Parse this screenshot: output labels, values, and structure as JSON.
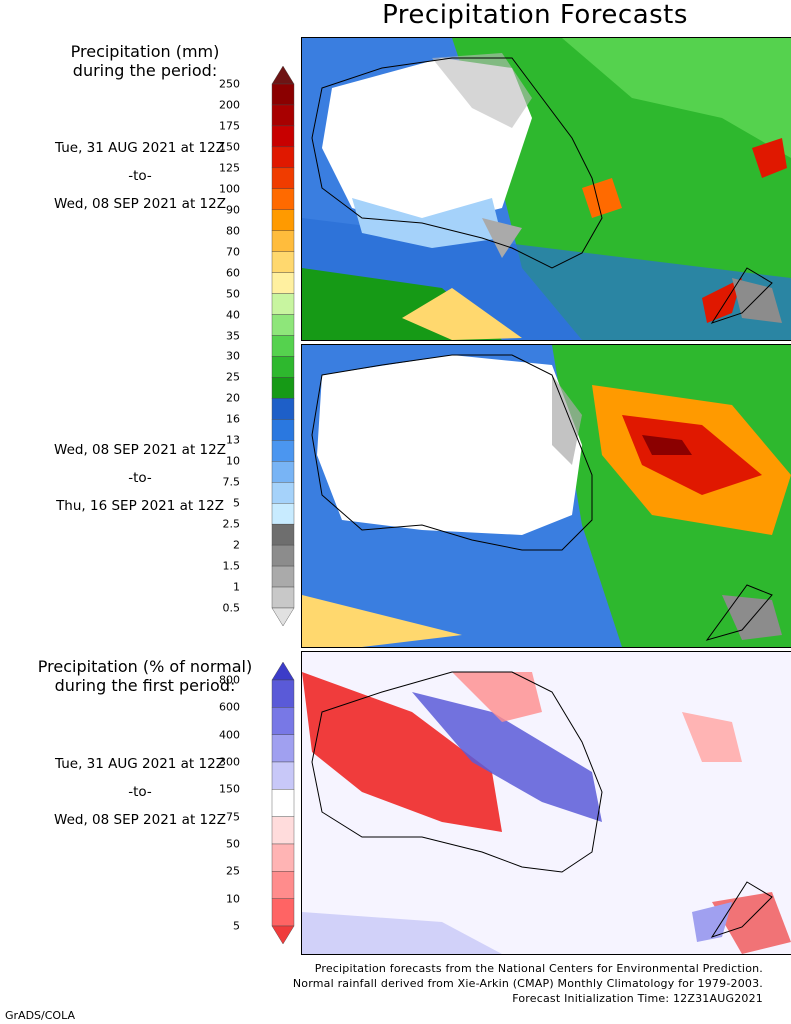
{
  "title": "Precipitation Forecasts",
  "panel1": {
    "heading_line1": "Precipitation (mm)",
    "heading_line2": "during the period:",
    "start": "Tue, 31 AUG 2021 at 12Z",
    "sep": "-to-",
    "end": "Wed, 08 SEP 2021 at 12Z"
  },
  "panel2": {
    "start": "Wed, 08 SEP 2021 at 12Z",
    "sep": "-to-",
    "end": "Thu, 16 SEP 2021 at 12Z"
  },
  "panel3": {
    "heading_line1": "Precipitation (% of normal)",
    "heading_line2": "during the first period:",
    "start": "Tue, 31 AUG 2021 at 12Z",
    "sep": "-to-",
    "end": "Wed, 08 SEP 2021 at 12Z"
  },
  "mm_scale": {
    "ticks": [
      "250",
      "200",
      "175",
      "150",
      "125",
      "100",
      "90",
      "80",
      "70",
      "60",
      "50",
      "40",
      "35",
      "30",
      "25",
      "20",
      "16",
      "13",
      "10",
      "7.5",
      "5",
      "2.5",
      "2",
      "1.5",
      "1",
      "0.5"
    ],
    "colors": [
      "#6e1414",
      "#8b0000",
      "#a80000",
      "#c80000",
      "#e01800",
      "#f03c00",
      "#ff6a00",
      "#ff9a00",
      "#ffbc3c",
      "#ffd86e",
      "#fff0a0",
      "#c8f5a0",
      "#8ee67a",
      "#55d24e",
      "#2eb82e",
      "#169a16",
      "#1e5fc8",
      "#2a78e0",
      "#4b96f0",
      "#78b4f5",
      "#a5d2fa",
      "#c8ebff",
      "#6e6e6e",
      "#8c8c8c",
      "#aaaaaa",
      "#c8c8c8",
      "#e1e1e1"
    ]
  },
  "pct_scale": {
    "ticks": [
      "800",
      "600",
      "400",
      "300",
      "150",
      "75",
      "50",
      "25",
      "10",
      "5"
    ],
    "colors": [
      "#3c3cc8",
      "#5a5ad8",
      "#7878e6",
      "#a0a0f0",
      "#c8c8f8",
      "#ffffff",
      "#ffdcdc",
      "#ffb4b4",
      "#ff8c8c",
      "#ff6464",
      "#f03c3c"
    ]
  },
  "footer": {
    "line1": "Precipitation forecasts from the National Centers for Environmental Prediction.",
    "line2": "Normal rainfall derived from Xie-Arkin (CMAP) Monthly Climatology for 1979-2003.",
    "line3": "Forecast Initialization Time: 12Z31AUG2021"
  },
  "credit": "GrADS/COLA"
}
